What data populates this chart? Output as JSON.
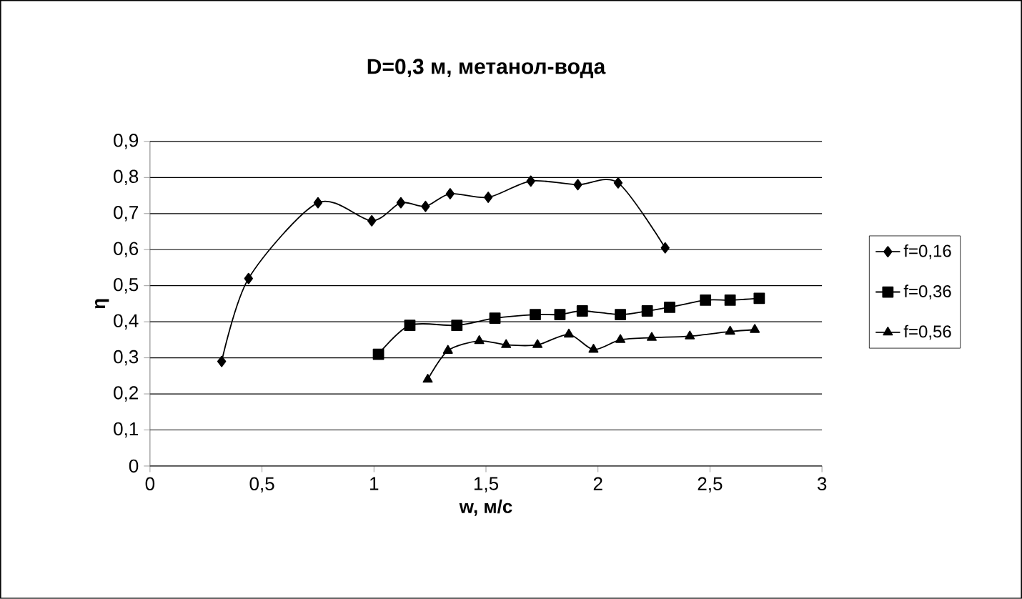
{
  "chart_data": {
    "type": "line",
    "title": "D=0,3 м, метанол-вода",
    "xlabel": "w, м/с",
    "ylabel": "η",
    "xlim": [
      0,
      3
    ],
    "xticks": [
      0,
      {
        "value": 0.5,
        "label": "0,5"
      },
      1,
      {
        "value": 1.5,
        "label": "1,5"
      },
      2,
      {
        "value": 2.5,
        "label": "2,5"
      },
      3
    ],
    "ylim": [
      0,
      0.9
    ],
    "yticks": [
      0,
      {
        "value": 0.1,
        "label": "0,1"
      },
      {
        "value": 0.2,
        "label": "0,2"
      },
      {
        "value": 0.3,
        "label": "0,3"
      },
      {
        "value": 0.4,
        "label": "0,4"
      },
      {
        "value": 0.5,
        "label": "0,5"
      },
      {
        "value": 0.6,
        "label": "0,6"
      },
      {
        "value": 0.7,
        "label": "0,7"
      },
      {
        "value": 0.8,
        "label": "0,8"
      },
      {
        "value": 0.9,
        "label": "0,9"
      }
    ],
    "grid": "y",
    "legend": "right",
    "line_style": "solid",
    "series": [
      {
        "name": "f=0,16",
        "color": "#000000",
        "marker": "diamond",
        "x": [
          0.32,
          0.44,
          0.75,
          0.99,
          1.12,
          1.23,
          1.34,
          1.51,
          1.7,
          1.91,
          2.09,
          2.3
        ],
        "values": [
          0.29,
          0.52,
          0.73,
          0.68,
          0.73,
          0.72,
          0.755,
          0.745,
          0.79,
          0.78,
          0.785,
          0.605
        ]
      },
      {
        "name": "f=0,36",
        "color": "#000000",
        "marker": "square",
        "x": [
          1.02,
          1.16,
          1.37,
          1.54,
          1.72,
          1.83,
          1.93,
          2.1,
          2.22,
          2.32,
          2.48,
          2.59,
          2.72
        ],
        "values": [
          0.31,
          0.39,
          0.39,
          0.41,
          0.42,
          0.42,
          0.43,
          0.42,
          0.43,
          0.44,
          0.46,
          0.46,
          0.465
        ]
      },
      {
        "name": "f=0,56",
        "color": "#000000",
        "marker": "triangle",
        "x": [
          1.24,
          1.33,
          1.47,
          1.59,
          1.73,
          1.87,
          1.98,
          2.1,
          2.24,
          2.41,
          2.59,
          2.7
        ],
        "values": [
          0.24,
          0.32,
          0.347,
          0.336,
          0.336,
          0.365,
          0.323,
          0.35,
          0.356,
          0.36,
          0.373,
          0.378
        ]
      }
    ]
  }
}
